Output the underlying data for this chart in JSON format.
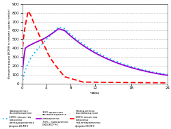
{
  "xlabel": "часы",
  "ylabel": "Концентрация ИСМН в плазме крови (мкбл)",
  "xlim": [
    0,
    24
  ],
  "ylim": [
    0,
    900
  ],
  "yticks": [
    0,
    100,
    200,
    300,
    400,
    500,
    600,
    700,
    800,
    900
  ],
  "xticks": [
    0,
    4,
    8,
    12,
    18,
    24
  ],
  "bg_color": "#ffffff",
  "grid_color": "#cccccc",
  "line_slow": {
    "color": "#00bfff",
    "label": "Замедленное\nвысвобождение\n100% вещества\n(обычная\nретардированная\nформа ИСМН)"
  },
  "line_mixed": {
    "color": "#9400d3",
    "label": "30% вещества\nвысвобождаются\nнемедленно,\n70% - замедленно\n(ЭФОКСР®)"
  },
  "line_fast": {
    "color": "#ff0000",
    "label": "Немедленное\nвысвобождение\n100% вещества\n(обычная\nтаблетированная\nформа ИСМН)"
  }
}
